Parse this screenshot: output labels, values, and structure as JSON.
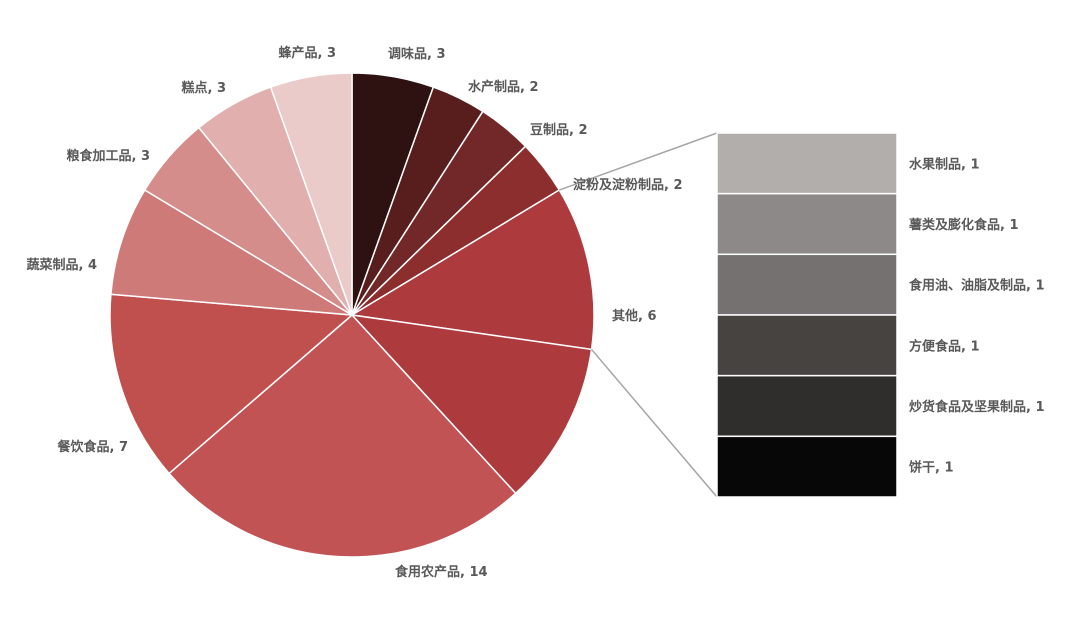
{
  "chart_data": {
    "type": "pie-of-pie",
    "title": "",
    "pie_slices": [
      {
        "label": "调味品",
        "value": 3,
        "color": "#2e1111",
        "display": "调味品, 3"
      },
      {
        "label": "水产制品",
        "value": 2,
        "color": "#581d1d",
        "display": "水产制品, 2"
      },
      {
        "label": "豆制品",
        "value": 2,
        "color": "#722828",
        "display": "豆制品, 2"
      },
      {
        "label": "淀粉及淀粉制品",
        "value": 2,
        "color": "#8c2e2e",
        "display": "淀粉及淀粉制品, 2"
      },
      {
        "label": "其他",
        "value": 6,
        "color": "#ad3b3e",
        "display": "其他, 6"
      },
      {
        "label": "食用农产品",
        "value": 14,
        "color": "#c25354",
        "display": "食用农产品, 14"
      },
      {
        "label": "餐饮食品",
        "value": 7,
        "color": "#c0504d",
        "display": "餐饮食品, 7"
      },
      {
        "label": "蔬菜制品",
        "value": 4,
        "color": "#cd7a79",
        "display": "蔬菜制品, 4"
      },
      {
        "label": "粮食加工品",
        "value": 3,
        "color": "#d58d8b",
        "display": "粮食加工品, 3"
      },
      {
        "label": "糕点",
        "value": 3,
        "color": "#e1b0ae",
        "display": "糕点, 3"
      },
      {
        "label": "蜂产品",
        "value": 3,
        "color": "#ebcbca",
        "display": "蜂产品, 3"
      }
    ],
    "bar_items": [
      {
        "label": "水果制品",
        "value": 1,
        "color": "#b2aeac",
        "display": "水果制品, 1"
      },
      {
        "label": "薯类及膨化食品",
        "value": 1,
        "color": "#8c8988",
        "display": "薯类及膨化食品, 1"
      },
      {
        "label": "食用油、油脂及制品",
        "value": 1,
        "color": "#747170",
        "display": "食用油、油脂及制品, 1"
      },
      {
        "label": "方便食品",
        "value": 1,
        "color": "#474341",
        "display": "方便食品, 1"
      },
      {
        "label": "炒货食品及坚果制品",
        "value": 1,
        "color": "#2f2e2d",
        "display": "炒货食品及坚果制品, 1"
      },
      {
        "label": "饼干",
        "value": 1,
        "color": "#070707",
        "display": "饼干, 1"
      }
    ],
    "connector_color": "#a6a6a6"
  }
}
